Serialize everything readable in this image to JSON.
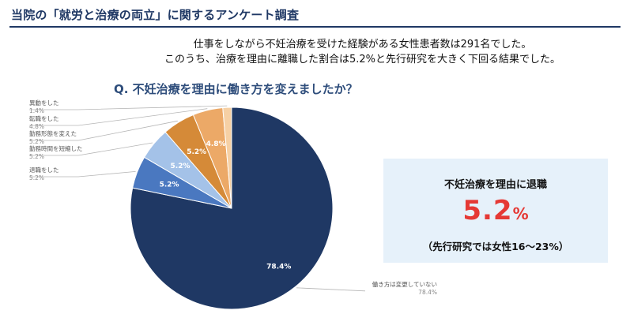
{
  "header": {
    "title": "当院の「就労と治療の両立」に関するアンケート調査"
  },
  "summary": {
    "line1": "仕事をしながら不妊治療を受けた経験がある女性患者数は291名でした。",
    "line2": "このうち、治療を理由に離職した割合は5.2%と先行研究を大きく下回る結果でした。"
  },
  "callout": {
    "label": "不妊治療を理由に退職",
    "value": "5.2",
    "unit": "%",
    "note": "（先行研究では女性16～23%）",
    "value_color": "#e53935",
    "background": "#e6f1fa"
  },
  "chart_data": {
    "type": "pie",
    "title": "Q. 不妊治療を理由に働き方を変えましたか？",
    "slices": [
      {
        "name": "働き方は変更していない",
        "value": 78.4,
        "label": "78.4%",
        "color": "#1f3864"
      },
      {
        "name": "退職をした",
        "value": 5.2,
        "label": "5.2%",
        "color": "#4a78c0"
      },
      {
        "name": "勤務時間を短縮した",
        "value": 5.2,
        "label": "5.2%",
        "color": "#a4c2e8"
      },
      {
        "name": "勤務形態を変えた",
        "value": 5.2,
        "label": "5.2%",
        "color": "#d58a38"
      },
      {
        "name": "転職をした",
        "value": 4.8,
        "label": "4.8%",
        "color": "#eca967"
      },
      {
        "name": "異動をした",
        "value": 1.4,
        "label": "1.4%",
        "color": "#f6d0a4"
      }
    ],
    "start_angle_deg": 0,
    "direction": "clockwise",
    "legend": "callout labels with leader lines"
  }
}
